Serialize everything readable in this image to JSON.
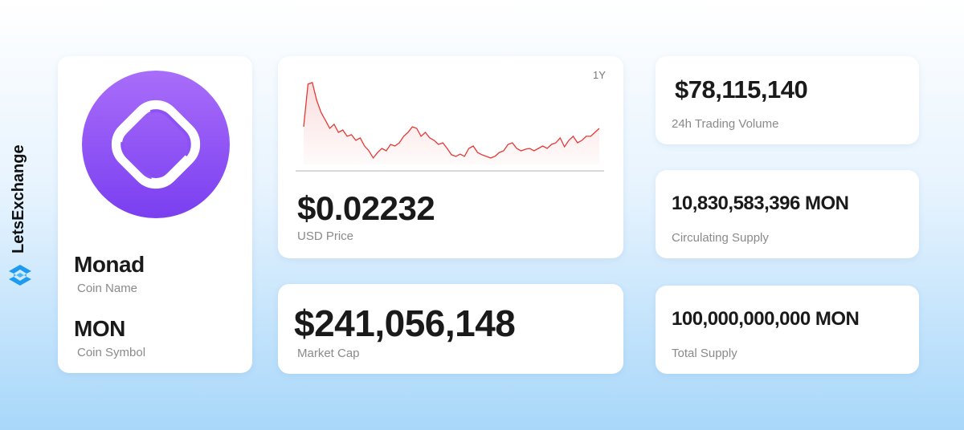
{
  "brand": "LetsExchange",
  "coin": {
    "name": "Monad",
    "name_label": "Coin Name",
    "symbol": "MON",
    "symbol_label": "Coin Symbol"
  },
  "chart_data": {
    "type": "line",
    "period": "1Y",
    "color": "#e53935",
    "ylim": [
      0,
      0.055
    ],
    "values": [
      0.0233,
      0.0496,
      0.0506,
      0.0397,
      0.0322,
      0.0273,
      0.0223,
      0.0248,
      0.0198,
      0.0213,
      0.0174,
      0.0184,
      0.0149,
      0.0164,
      0.0114,
      0.0084,
      0.004,
      0.0074,
      0.0099,
      0.0084,
      0.0124,
      0.0114,
      0.0134,
      0.0174,
      0.0198,
      0.0233,
      0.0223,
      0.0174,
      0.0198,
      0.0164,
      0.0149,
      0.0124,
      0.0134,
      0.0099,
      0.006,
      0.005,
      0.0064,
      0.005,
      0.0099,
      0.0114,
      0.0074,
      0.006,
      0.005,
      0.004,
      0.005,
      0.0074,
      0.0084,
      0.0124,
      0.0134,
      0.0099,
      0.0084,
      0.0094,
      0.0099,
      0.0084,
      0.0099,
      0.0114,
      0.0099,
      0.0124,
      0.0134,
      0.0164,
      0.0109,
      0.0149,
      0.0174,
      0.0134,
      0.0149,
      0.0174,
      0.0174,
      0.0198,
      0.0223
    ]
  },
  "price": {
    "value": "$0.02232",
    "label": "USD Price"
  },
  "market_cap": {
    "value": "$241,056,148",
    "label": "Market Cap"
  },
  "stats": [
    {
      "value": "$78,115,140",
      "label": "24h Trading Volume"
    },
    {
      "value": "10,830,583,396 MON",
      "label": "Circulating Supply"
    },
    {
      "value": "100,000,000,000 MON",
      "label": "Total Supply"
    }
  ]
}
